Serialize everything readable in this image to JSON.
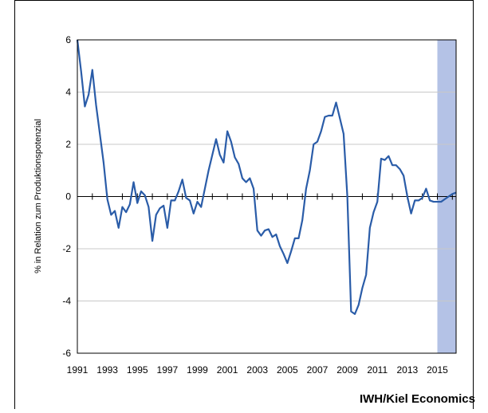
{
  "chart_data": {
    "type": "line",
    "ylabel": "% in Relation zum Produktionspotenzial",
    "source": "IWH/Kiel Economics",
    "x": [
      1991,
      1991.25,
      1991.5,
      1991.75,
      1992,
      1992.25,
      1992.5,
      1992.75,
      1993,
      1993.25,
      1993.5,
      1993.75,
      1994,
      1994.25,
      1994.5,
      1994.75,
      1995,
      1995.25,
      1995.5,
      1995.75,
      1996,
      1996.25,
      1996.5,
      1996.75,
      1997,
      1997.25,
      1997.5,
      1997.75,
      1998,
      1998.25,
      1998.5,
      1998.75,
      1999,
      1999.25,
      1999.5,
      1999.75,
      2000,
      2000.25,
      2000.5,
      2000.75,
      2001,
      2001.25,
      2001.5,
      2001.75,
      2002,
      2002.25,
      2002.5,
      2002.75,
      2003,
      2003.25,
      2003.5,
      2003.75,
      2004,
      2004.25,
      2004.5,
      2004.75,
      2005,
      2005.25,
      2005.5,
      2005.75,
      2006,
      2006.25,
      2006.5,
      2006.75,
      2007,
      2007.25,
      2007.5,
      2007.75,
      2008,
      2008.25,
      2008.5,
      2008.75,
      2009,
      2009.25,
      2009.5,
      2009.75,
      2010,
      2010.25,
      2010.5,
      2010.75,
      2011,
      2011.25,
      2011.5,
      2011.75,
      2012,
      2012.25,
      2012.5,
      2012.75,
      2013,
      2013.25,
      2013.5,
      2013.75,
      2014,
      2014.25,
      2014.5,
      2014.75,
      2015,
      2015.25,
      2015.5,
      2015.75,
      2016,
      2016.25
    ],
    "series": [
      {
        "color": "#2a5ca8",
        "values": [
          6,
          4.8,
          3.45,
          3.9,
          4.85,
          3.5,
          2.4,
          1.3,
          -0.1,
          -0.7,
          -0.55,
          -1.2,
          -0.4,
          -0.6,
          -0.3,
          0.55,
          -0.25,
          0.2,
          0.05,
          -0.4,
          -1.7,
          -0.7,
          -0.45,
          -0.35,
          -1.2,
          -0.15,
          -0.15,
          0.2,
          0.65,
          -0.05,
          -0.15,
          -0.65,
          -0.2,
          -0.4,
          0.3,
          1.0,
          1.6,
          2.2,
          1.6,
          1.3,
          2.5,
          2.1,
          1.5,
          1.25,
          0.7,
          0.55,
          0.7,
          0.3,
          -1.3,
          -1.5,
          -1.3,
          -1.25,
          -1.55,
          -1.45,
          -1.9,
          -2.2,
          -2.55,
          -2.1,
          -1.6,
          -1.6,
          -0.9,
          0.3,
          1.0,
          2.0,
          2.1,
          2.5,
          3.05,
          3.1,
          3.1,
          3.6,
          3.0,
          2.4,
          0.0,
          -4.4,
          -4.5,
          -4.15,
          -3.5,
          -3.0,
          -1.2,
          -0.6,
          -0.2,
          1.45,
          1.4,
          1.55,
          1.2,
          1.2,
          1.05,
          0.8,
          0.0,
          -0.65,
          -0.15,
          -0.15,
          -0.05,
          0.3,
          -0.15,
          -0.2,
          -0.2,
          -0.2,
          -0.1,
          0.0,
          0.1,
          0.15
        ]
      }
    ],
    "xlim": [
      1991,
      2016.25
    ],
    "xticks": [
      1991,
      1993,
      1995,
      1997,
      1999,
      2001,
      2003,
      2005,
      2007,
      2009,
      2011,
      2013,
      2015
    ],
    "xminorticks": [
      1992,
      1994,
      1996,
      1998,
      2000,
      2002,
      2004,
      2006,
      2008,
      2010,
      2012,
      2014,
      2016
    ],
    "ylim": [
      -6,
      6
    ],
    "yticks": [
      -6,
      -4,
      -2,
      0,
      2,
      4,
      6
    ],
    "grid": true,
    "shade": {
      "from": 2015,
      "to": 2016.25,
      "color": "#b4c2e6"
    }
  }
}
